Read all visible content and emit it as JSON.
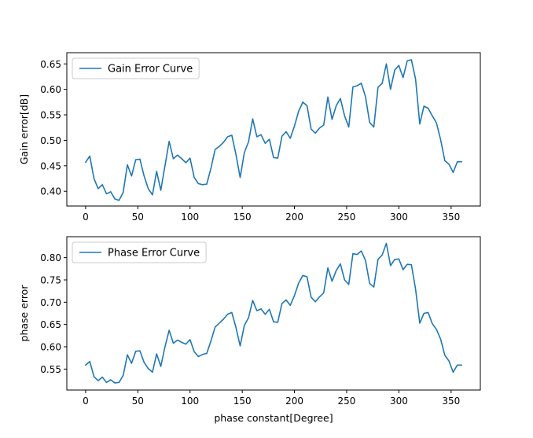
{
  "chart_data": [
    {
      "type": "line",
      "title": "",
      "xlabel": "",
      "ylabel": "Gain error[dB]",
      "xlim": [
        -18,
        378
      ],
      "ylim": [
        0.371,
        0.672
      ],
      "xticks": [
        0,
        50,
        100,
        150,
        200,
        250,
        300,
        350
      ],
      "yticks": [
        0.4,
        0.45,
        0.5,
        0.55,
        0.6,
        0.65
      ],
      "xtick_labels": [
        "0",
        "50",
        "100",
        "150",
        "200",
        "250",
        "300",
        "350"
      ],
      "ytick_labels": [
        "0.40",
        "0.45",
        "0.50",
        "0.55",
        "0.60",
        "0.65"
      ],
      "grid": false,
      "legend": "upper-left",
      "series": [
        {
          "name": "Gain Error Curve",
          "color": "#1f77b4",
          "x": [
            0,
            4,
            8,
            12,
            16,
            20,
            24,
            28,
            32,
            36,
            40,
            44,
            48,
            52,
            56,
            60,
            64,
            68,
            72,
            76,
            80,
            84,
            88,
            92,
            96,
            100,
            104,
            108,
            112,
            116,
            120,
            124,
            128,
            132,
            136,
            140,
            144,
            148,
            152,
            156,
            160,
            164,
            168,
            172,
            176,
            180,
            184,
            188,
            192,
            196,
            200,
            204,
            208,
            212,
            216,
            220,
            224,
            228,
            232,
            236,
            240,
            244,
            248,
            252,
            256,
            260,
            264,
            268,
            272,
            276,
            280,
            284,
            288,
            292,
            296,
            300,
            304,
            308,
            312,
            316,
            320,
            324,
            328,
            332,
            336,
            340,
            344,
            348,
            352,
            356,
            360
          ],
          "y": [
            0.457,
            0.469,
            0.425,
            0.405,
            0.413,
            0.395,
            0.399,
            0.385,
            0.382,
            0.398,
            0.452,
            0.43,
            0.462,
            0.463,
            0.43,
            0.405,
            0.393,
            0.439,
            0.402,
            0.45,
            0.498,
            0.464,
            0.471,
            0.464,
            0.456,
            0.465,
            0.427,
            0.415,
            0.413,
            0.414,
            0.445,
            0.482,
            0.488,
            0.496,
            0.507,
            0.51,
            0.472,
            0.427,
            0.476,
            0.497,
            0.542,
            0.507,
            0.511,
            0.494,
            0.502,
            0.466,
            0.465,
            0.508,
            0.517,
            0.504,
            0.528,
            0.557,
            0.575,
            0.568,
            0.522,
            0.514,
            0.524,
            0.53,
            0.585,
            0.541,
            0.568,
            0.582,
            0.548,
            0.526,
            0.605,
            0.607,
            0.612,
            0.586,
            0.535,
            0.526,
            0.604,
            0.612,
            0.65,
            0.6,
            0.638,
            0.647,
            0.623,
            0.656,
            0.658,
            0.62,
            0.532,
            0.567,
            0.563,
            0.548,
            0.534,
            0.501,
            0.46,
            0.453,
            0.437,
            0.458,
            0.458
          ]
        }
      ]
    },
    {
      "type": "line",
      "title": "",
      "xlabel": "phase constant[Degree]",
      "ylabel": "phase error",
      "xlim": [
        -18,
        378
      ],
      "ylim": [
        0.503,
        0.847
      ],
      "xticks": [
        0,
        50,
        100,
        150,
        200,
        250,
        300,
        350
      ],
      "yticks": [
        0.55,
        0.6,
        0.65,
        0.7,
        0.75,
        0.8
      ],
      "xtick_labels": [
        "0",
        "50",
        "100",
        "150",
        "200",
        "250",
        "300",
        "350"
      ],
      "ytick_labels": [
        "0.55",
        "0.60",
        "0.65",
        "0.70",
        "0.75",
        "0.80"
      ],
      "grid": false,
      "legend": "upper-left",
      "series": [
        {
          "name": "Phase Error Curve",
          "color": "#1f77b4",
          "x": [
            0,
            4,
            8,
            12,
            16,
            20,
            24,
            28,
            32,
            36,
            40,
            44,
            48,
            52,
            56,
            60,
            64,
            68,
            72,
            76,
            80,
            84,
            88,
            92,
            96,
            100,
            104,
            108,
            112,
            116,
            120,
            124,
            128,
            132,
            136,
            140,
            144,
            148,
            152,
            156,
            160,
            164,
            168,
            172,
            176,
            180,
            184,
            188,
            192,
            196,
            200,
            204,
            208,
            212,
            216,
            220,
            224,
            228,
            232,
            236,
            240,
            244,
            248,
            252,
            256,
            260,
            264,
            268,
            272,
            276,
            280,
            284,
            288,
            292,
            296,
            300,
            304,
            308,
            312,
            316,
            320,
            324,
            328,
            332,
            336,
            340,
            344,
            348,
            352,
            356,
            360
          ],
          "y": [
            0.559,
            0.567,
            0.533,
            0.524,
            0.532,
            0.52,
            0.526,
            0.519,
            0.52,
            0.536,
            0.582,
            0.563,
            0.59,
            0.591,
            0.565,
            0.551,
            0.543,
            0.584,
            0.556,
            0.6,
            0.637,
            0.608,
            0.615,
            0.61,
            0.606,
            0.616,
            0.589,
            0.578,
            0.583,
            0.585,
            0.613,
            0.644,
            0.653,
            0.662,
            0.673,
            0.677,
            0.643,
            0.602,
            0.648,
            0.665,
            0.704,
            0.681,
            0.685,
            0.673,
            0.684,
            0.656,
            0.655,
            0.697,
            0.705,
            0.693,
            0.715,
            0.743,
            0.76,
            0.757,
            0.711,
            0.701,
            0.712,
            0.721,
            0.777,
            0.747,
            0.771,
            0.786,
            0.75,
            0.74,
            0.809,
            0.807,
            0.815,
            0.794,
            0.742,
            0.734,
            0.796,
            0.806,
            0.832,
            0.782,
            0.796,
            0.797,
            0.773,
            0.785,
            0.784,
            0.729,
            0.653,
            0.675,
            0.677,
            0.652,
            0.639,
            0.617,
            0.581,
            0.568,
            0.543,
            0.559,
            0.559
          ]
        }
      ]
    }
  ]
}
